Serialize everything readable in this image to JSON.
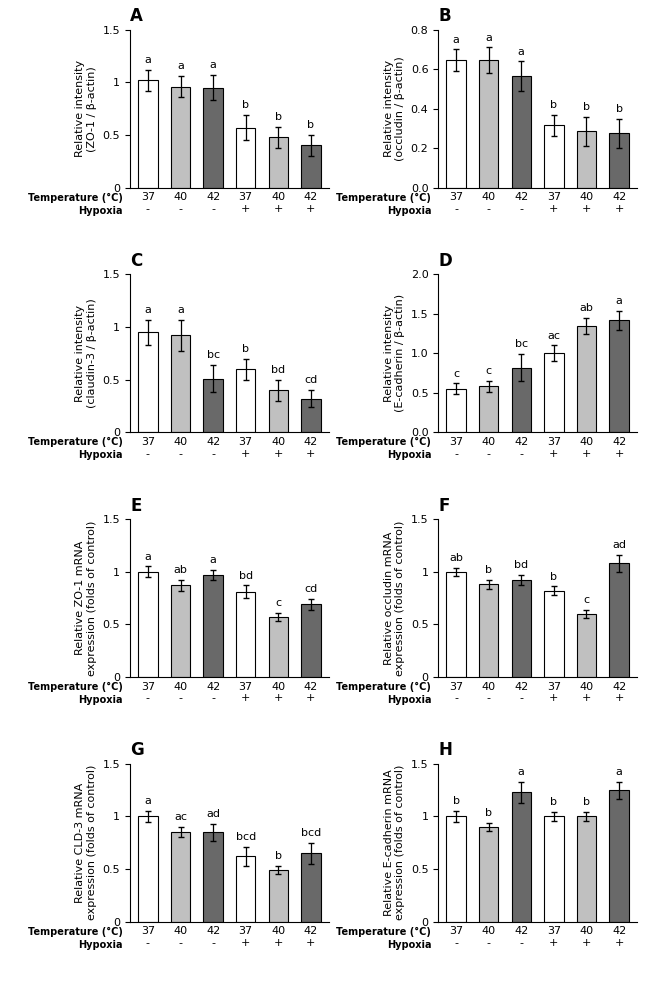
{
  "chart_data": [
    {
      "type": "bar",
      "title": "A",
      "ylabel": "Relative intensity\n(ZO-1 / β-actin)",
      "categories": [
        "37\n-",
        "40\n-",
        "42\n-",
        "37\n+",
        "40\n+",
        "42\n+"
      ],
      "values": [
        1.02,
        0.96,
        0.95,
        0.57,
        0.48,
        0.4
      ],
      "errors": [
        0.1,
        0.1,
        0.12,
        0.12,
        0.1,
        0.1
      ],
      "bar_labels": [
        "a",
        "a",
        "a",
        "b",
        "b",
        "b"
      ],
      "colors": [
        "white",
        "#c0c0c0",
        "#696969",
        "white",
        "#c0c0c0",
        "#696969"
      ],
      "ylim": [
        0,
        1.5
      ],
      "yticks": [
        0,
        0.5,
        1,
        1.5
      ],
      "annotations": [
        "Temperature (°C)",
        "Hypoxia"
      ]
    },
    {
      "type": "bar",
      "title": "B",
      "ylabel": "Relative intensity\n(occludin / β-actin)",
      "categories": [
        "37\n-",
        "40\n-",
        "42\n-",
        "37\n+",
        "40\n+",
        "42\n+"
      ],
      "values": [
        0.645,
        0.645,
        0.565,
        0.315,
        0.285,
        0.275
      ],
      "errors": [
        0.055,
        0.065,
        0.075,
        0.055,
        0.075,
        0.075
      ],
      "bar_labels": [
        "a",
        "a",
        "a",
        "b",
        "b",
        "b"
      ],
      "colors": [
        "white",
        "#c0c0c0",
        "#696969",
        "white",
        "#c0c0c0",
        "#696969"
      ],
      "ylim": [
        0,
        0.8
      ],
      "yticks": [
        {
          "value": 0,
          "label": "0.0"
        },
        0.2,
        0.4,
        0.6,
        0.8
      ],
      "annotations": [
        "Temperature (°C)",
        "Hypoxia"
      ]
    },
    {
      "type": "bar",
      "title": "C",
      "ylabel": "Relative intensity\n(claudin-3 / β-actin)",
      "categories": [
        "37\n-",
        "40\n-",
        "42\n-",
        "37\n+",
        "40\n+",
        "42\n+"
      ],
      "values": [
        0.95,
        0.92,
        0.51,
        0.6,
        0.4,
        0.32
      ],
      "errors": [
        0.12,
        0.15,
        0.13,
        0.1,
        0.1,
        0.08
      ],
      "bar_labels": [
        "a",
        "a",
        "bc",
        "b",
        "bd",
        "cd"
      ],
      "colors": [
        "white",
        "#c0c0c0",
        "#696969",
        "white",
        "#c0c0c0",
        "#696969"
      ],
      "ylim": [
        0,
        1.5
      ],
      "yticks": [
        0,
        0.5,
        1,
        1.5
      ],
      "annotations": [
        "Temperature (°C)",
        "Hypoxia"
      ]
    },
    {
      "type": "bar",
      "title": "D",
      "ylabel": "Relative intensity\n(E-cadherin / β-actin)",
      "categories": [
        "37\n-",
        "40\n-",
        "42\n-",
        "37\n+",
        "40\n+",
        "42\n+"
      ],
      "values": [
        0.55,
        0.58,
        0.82,
        1.0,
        1.35,
        1.42
      ],
      "errors": [
        0.07,
        0.07,
        0.17,
        0.1,
        0.1,
        0.12
      ],
      "bar_labels": [
        "c",
        "c",
        "bc",
        "ac",
        "ab",
        "a"
      ],
      "colors": [
        "white",
        "#c0c0c0",
        "#696969",
        "white",
        "#c0c0c0",
        "#696969"
      ],
      "ylim": [
        0,
        2.0
      ],
      "yticks": [
        {
          "value": 0,
          "label": "0.0"
        },
        0.5,
        {
          "value": 1,
          "label": "1.0"
        },
        1.5,
        {
          "value": 2,
          "label": "2.0"
        }
      ],
      "annotations": [
        "Temperature (°C)",
        "Hypoxia"
      ]
    },
    {
      "type": "bar",
      "title": "E",
      "ylabel": "Relative ZO-1 mRNA\nexpression (folds of control)",
      "categories": [
        "37\n-",
        "40\n-",
        "42\n-",
        "37\n+",
        "40\n+",
        "42\n+"
      ],
      "values": [
        1.0,
        0.87,
        0.97,
        0.81,
        0.57,
        0.69
      ],
      "errors": [
        0.05,
        0.05,
        0.05,
        0.06,
        0.04,
        0.05
      ],
      "bar_labels": [
        "a",
        "ab",
        "a",
        "bd",
        "c",
        "cd"
      ],
      "colors": [
        "white",
        "#c0c0c0",
        "#696969",
        "white",
        "#c0c0c0",
        "#696969"
      ],
      "ylim": [
        0,
        1.5
      ],
      "yticks": [
        0,
        0.5,
        1,
        1.5
      ],
      "annotations": [
        "Temperature (°C)",
        "Hypoxia"
      ]
    },
    {
      "type": "bar",
      "title": "F",
      "ylabel": "Relative occludin mRNA\nexpression (folds of control)",
      "categories": [
        "37\n-",
        "40\n-",
        "42\n-",
        "37\n+",
        "40\n+",
        "42\n+"
      ],
      "values": [
        1.0,
        0.88,
        0.92,
        0.82,
        0.6,
        1.08
      ],
      "errors": [
        0.04,
        0.04,
        0.05,
        0.04,
        0.04,
        0.08
      ],
      "bar_labels": [
        "ab",
        "b",
        "bd",
        "b",
        "c",
        "ad"
      ],
      "colors": [
        "white",
        "#c0c0c0",
        "#696969",
        "white",
        "#c0c0c0",
        "#696969"
      ],
      "ylim": [
        0,
        1.5
      ],
      "yticks": [
        0,
        0.5,
        1,
        1.5
      ],
      "annotations": [
        "Temperature (°C)",
        "Hypoxia"
      ]
    },
    {
      "type": "bar",
      "title": "G",
      "ylabel": "Relative CLD-3 mRNA\nexpression (folds of control)",
      "categories": [
        "37\n-",
        "40\n-",
        "42\n-",
        "37\n+",
        "40\n+",
        "42\n+"
      ],
      "values": [
        1.0,
        0.85,
        0.85,
        0.62,
        0.49,
        0.65
      ],
      "errors": [
        0.05,
        0.05,
        0.08,
        0.09,
        0.04,
        0.1
      ],
      "bar_labels": [
        "a",
        "ac",
        "ad",
        "bcd",
        "b",
        "bcd"
      ],
      "colors": [
        "white",
        "#c0c0c0",
        "#696969",
        "white",
        "#c0c0c0",
        "#696969"
      ],
      "ylim": [
        0,
        1.5
      ],
      "yticks": [
        0,
        0.5,
        1,
        1.5
      ],
      "annotations": [
        "Temperature (°C)",
        "Hypoxia"
      ]
    },
    {
      "type": "bar",
      "title": "H",
      "ylabel": "Relative E-cadherin mRNA\nexpression (folds of control)",
      "categories": [
        "37\n-",
        "40\n-",
        "42\n-",
        "37\n+",
        "40\n+",
        "42\n+"
      ],
      "values": [
        1.0,
        0.9,
        1.23,
        1.0,
        1.0,
        1.25
      ],
      "errors": [
        0.05,
        0.04,
        0.1,
        0.04,
        0.04,
        0.08
      ],
      "bar_labels": [
        "b",
        "b",
        "a",
        "b",
        "b",
        "a"
      ],
      "colors": [
        "white",
        "#c0c0c0",
        "#696969",
        "white",
        "#c0c0c0",
        "#696969"
      ],
      "ylim": [
        0,
        1.5
      ],
      "yticks": [
        0,
        0.5,
        1,
        1.5
      ],
      "annotations": [
        "Temperature (°C)",
        "Hypoxia"
      ]
    }
  ]
}
